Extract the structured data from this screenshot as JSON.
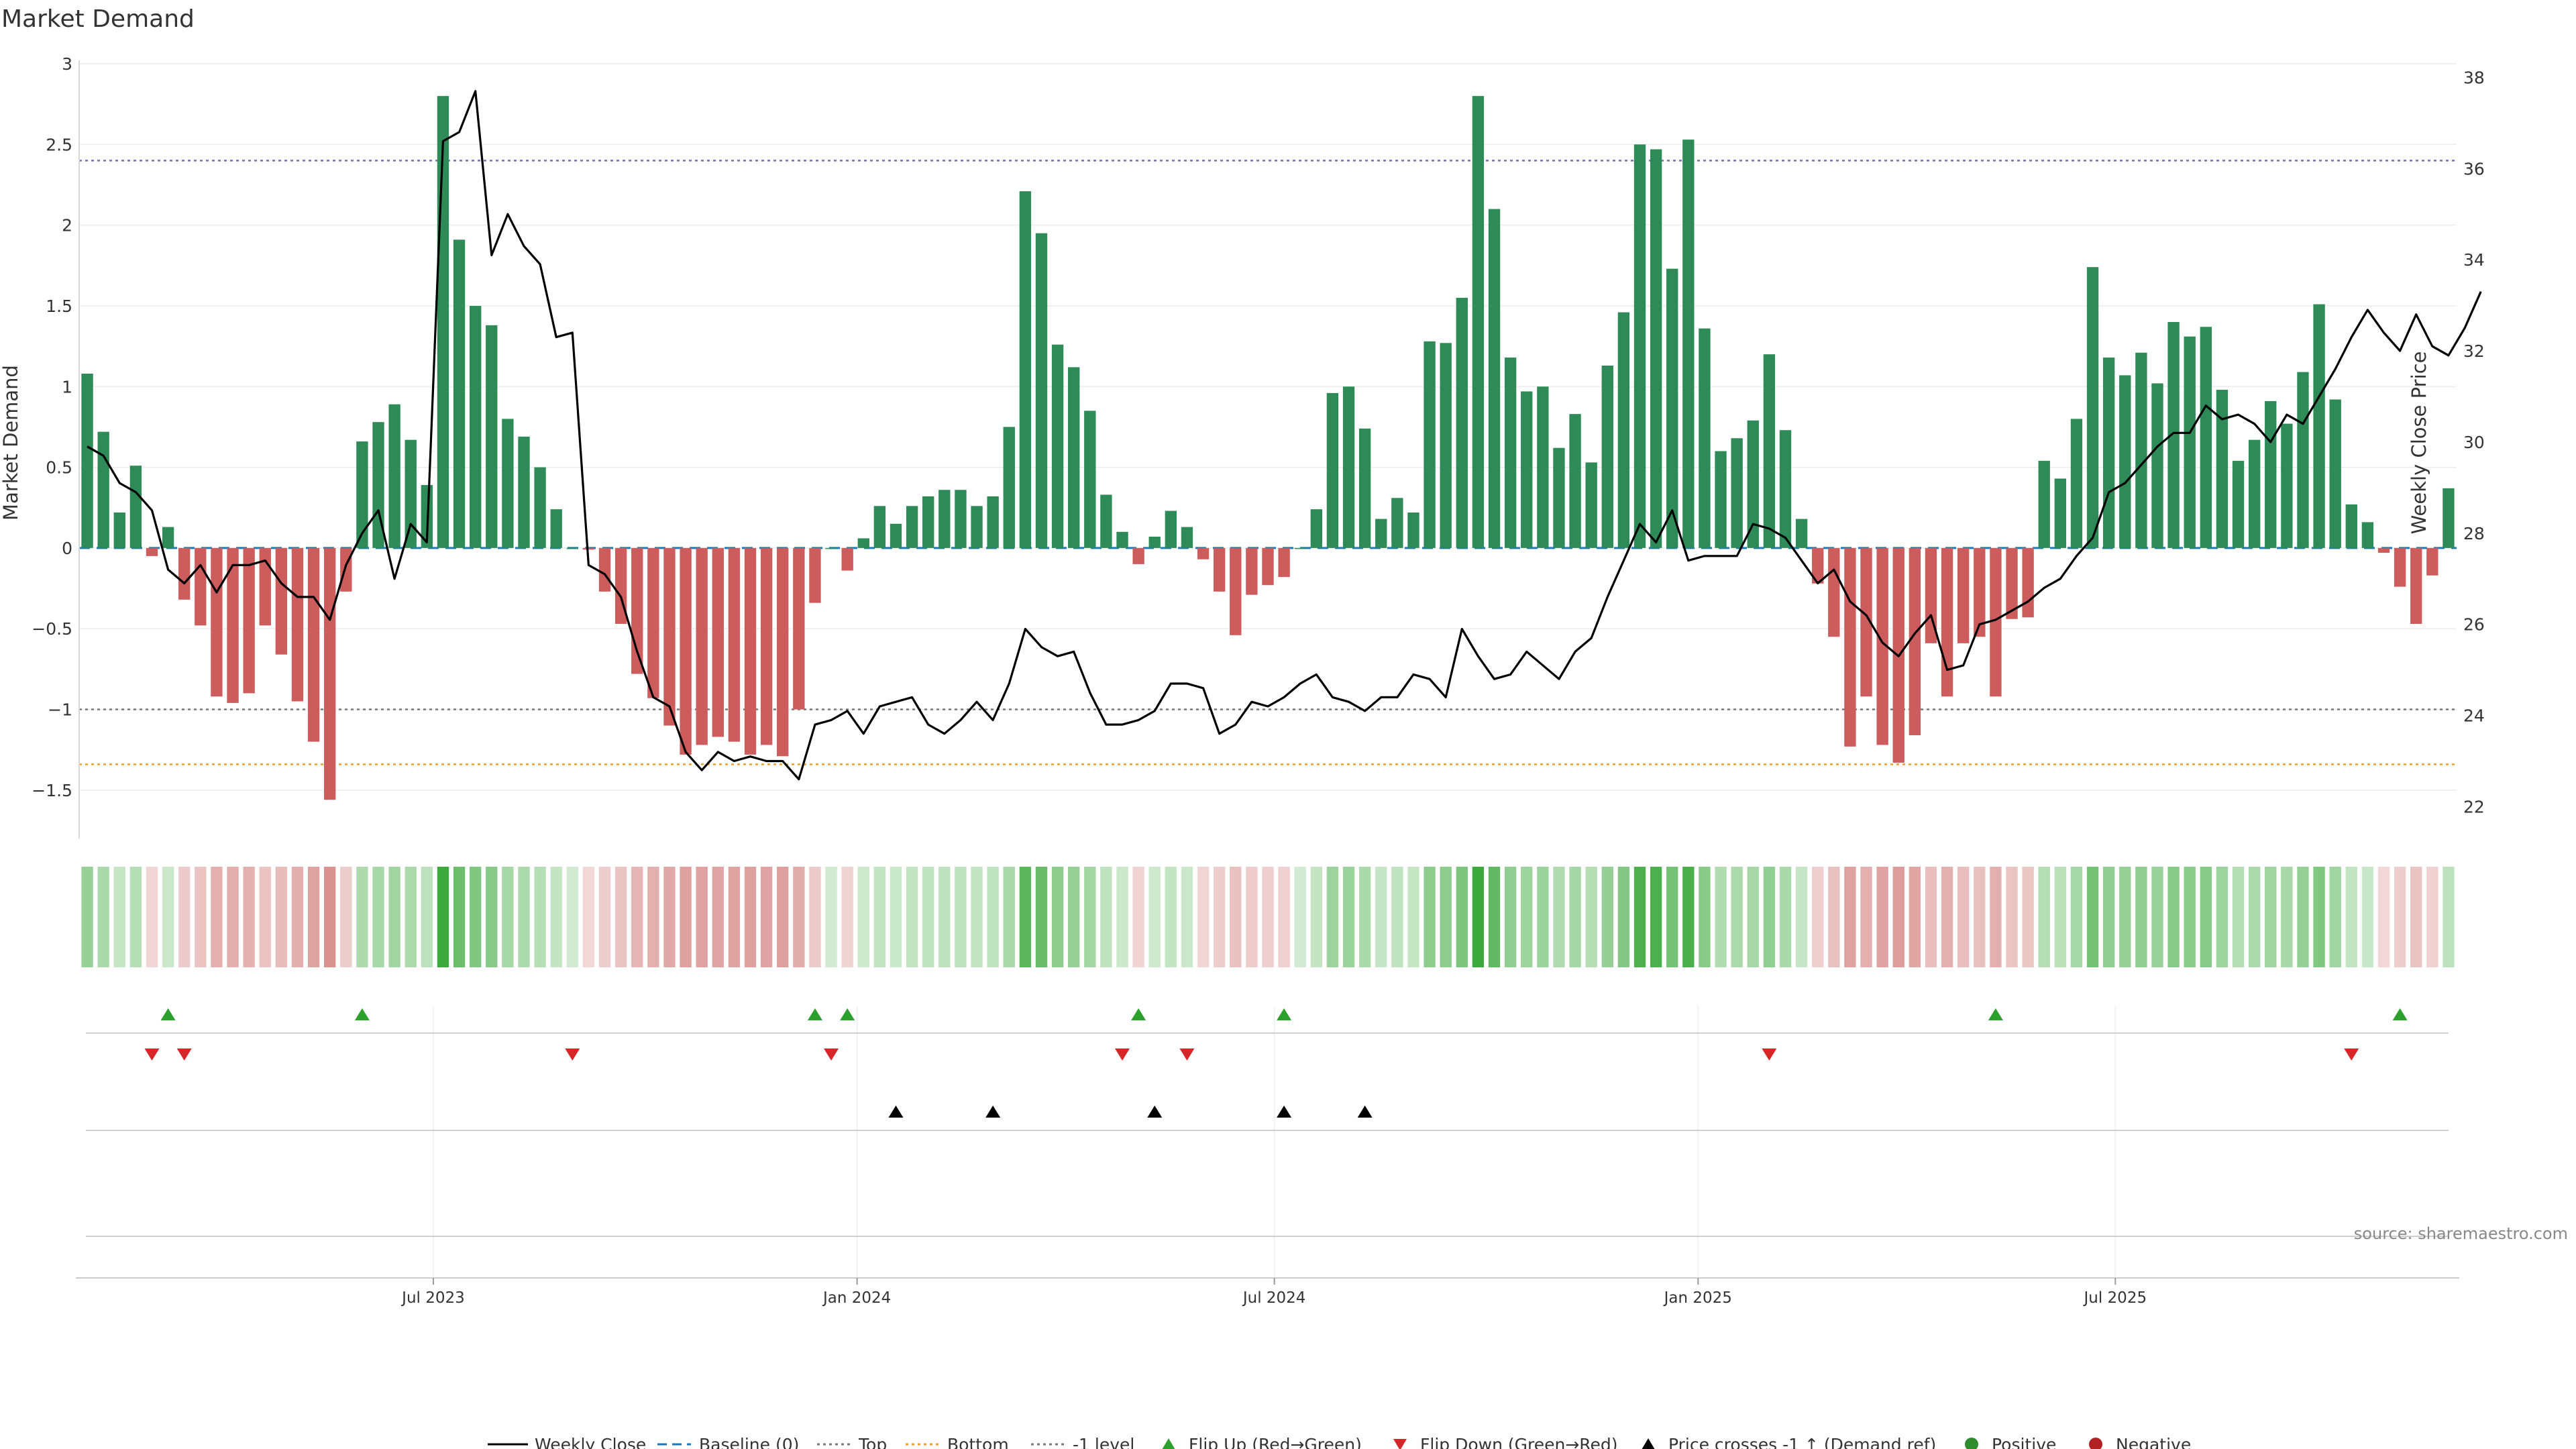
{
  "chart_data": {
    "type": "bar",
    "title": "Market Demand",
    "ylabel": "Market Demand",
    "y2label": "Weekly Close Price",
    "ylim": [
      -1.8,
      3.0
    ],
    "y2lim": [
      21.3,
      38.3
    ],
    "yticks": [
      3,
      2.5,
      2,
      1.5,
      1,
      0.5,
      0,
      -0.5,
      -1,
      -1.5
    ],
    "ytick_labels": [
      "3",
      "2.5",
      "2",
      "1.5",
      "1",
      "0.5",
      "0",
      "−0.5",
      "−1",
      "−1.5"
    ],
    "y2ticks": [
      38,
      36,
      34,
      32,
      30,
      28,
      26,
      24,
      22
    ],
    "y2tick_labels": [
      "38",
      "36",
      "34",
      "32",
      "30",
      "28",
      "26",
      "24",
      "22"
    ],
    "reference_lines": {
      "top": 2.4,
      "bottom": -1.34,
      "minus_one": -1.0,
      "baseline": 0
    },
    "x_start": "2023-02-06",
    "interval_days": 7,
    "date_ticks": [
      {
        "label": "Jul 2023",
        "week": 21.4
      },
      {
        "label": "Jan 2024",
        "week": 47.6
      },
      {
        "label": "Jul 2024",
        "week": 73.4
      },
      {
        "label": "Jan 2025",
        "week": 99.6
      },
      {
        "label": "Jul 2025",
        "week": 125.4
      }
    ],
    "series": [
      {
        "name": "Market Demand",
        "values": [
          1.08,
          0.72,
          0.22,
          0.51,
          -0.05,
          0.13,
          -0.32,
          -0.48,
          -0.92,
          -0.96,
          -0.9,
          -0.48,
          -0.66,
          -0.95,
          -1.2,
          -1.56,
          -0.27,
          0.66,
          0.78,
          0.89,
          0.67,
          0.39,
          2.8,
          1.91,
          1.5,
          1.38,
          0.8,
          0.69,
          0.5,
          0.24,
          0.0,
          -0.01,
          -0.27,
          -0.47,
          -0.78,
          -0.93,
          -1.1,
          -1.28,
          -1.22,
          -1.17,
          -1.2,
          -1.28,
          -1.22,
          -1.29,
          -1.0,
          -0.34,
          0.0,
          -0.14,
          0.06,
          0.26,
          0.15,
          0.26,
          0.32,
          0.36,
          0.36,
          0.26,
          0.32,
          0.75,
          2.21,
          1.95,
          1.26,
          1.12,
          0.85,
          0.33,
          0.1,
          -0.1,
          0.07,
          0.23,
          0.13,
          -0.07,
          -0.27,
          -0.54,
          -0.29,
          -0.23,
          -0.18,
          0.0,
          0.24,
          0.96,
          1.0,
          0.74,
          0.18,
          0.31,
          0.22,
          1.28,
          1.27,
          1.55,
          2.8,
          2.1,
          1.18,
          0.97,
          1.0,
          0.62,
          0.83,
          0.53,
          1.13,
          1.46,
          2.5,
          2.47,
          1.73,
          2.53,
          1.36,
          0.6,
          0.68,
          0.79,
          1.2,
          0.73,
          0.18,
          -0.22,
          -0.55,
          -1.23,
          -0.92,
          -1.22,
          -1.33,
          -1.16,
          -0.59,
          -0.92,
          -0.59,
          -0.55,
          -0.92,
          -0.44,
          -0.43,
          0.54,
          0.43,
          0.8,
          1.74,
          1.18,
          1.07,
          1.21,
          1.02,
          1.4,
          1.31,
          1.37,
          0.98,
          0.54,
          0.67,
          0.91,
          0.77,
          1.09,
          1.51,
          0.92,
          0.27,
          0.16,
          -0.03,
          -0.24,
          -0.47,
          -0.17,
          0.37
        ]
      },
      {
        "name": "Weekly Close",
        "axis": "right",
        "values": [
          29.9,
          29.7,
          29.1,
          28.9,
          28.5,
          27.2,
          26.9,
          27.3,
          26.7,
          27.3,
          27.3,
          27.4,
          26.9,
          26.6,
          26.6,
          26.1,
          27.3,
          28.0,
          28.5,
          27.0,
          28.2,
          27.8,
          36.6,
          36.8,
          37.7,
          34.1,
          35.0,
          34.3,
          33.9,
          32.3,
          32.4,
          27.3,
          27.1,
          26.6,
          25.4,
          24.4,
          24.2,
          23.2,
          22.8,
          23.2,
          23.0,
          23.1,
          23.0,
          23.0,
          22.6,
          23.8,
          23.9,
          24.1,
          23.6,
          24.2,
          24.3,
          24.4,
          23.8,
          23.6,
          23.9,
          24.3,
          23.9,
          24.7,
          25.9,
          25.5,
          25.3,
          25.4,
          24.5,
          23.8,
          23.8,
          23.9,
          24.1,
          24.7,
          24.7,
          24.6,
          23.6,
          23.8,
          24.3,
          24.2,
          24.4,
          24.7,
          24.9,
          24.4,
          24.3,
          24.1,
          24.4,
          24.4,
          24.9,
          24.8,
          24.4,
          25.9,
          25.3,
          24.8,
          24.9,
          25.4,
          25.1,
          24.8,
          25.4,
          25.7,
          26.6,
          27.4,
          28.2,
          27.8,
          28.5,
          27.4,
          27.5,
          27.5,
          27.5,
          28.2,
          28.1,
          27.9,
          27.4,
          26.9,
          27.2,
          26.5,
          26.2,
          25.6,
          25.3,
          25.8,
          26.2,
          25.0,
          25.1,
          26.0,
          26.1,
          26.3,
          26.5,
          26.8,
          27.0,
          27.5,
          27.9,
          28.9,
          29.1,
          29.5,
          29.9,
          30.2,
          30.2,
          30.8,
          30.5,
          30.6,
          30.4,
          30.0,
          30.6,
          30.4,
          31.0,
          31.6,
          32.3,
          32.9,
          32.4,
          32.0,
          32.8,
          32.1,
          31.9,
          32.5,
          33.3
        ]
      }
    ],
    "flip_up_weeks": [
      5,
      17,
      45,
      47,
      65,
      74,
      118,
      143
    ],
    "flip_down_weeks": [
      4,
      6,
      30,
      46,
      64,
      68,
      104,
      140
    ],
    "price_cross_weeks": [
      50,
      56,
      66,
      74,
      79
    ],
    "colors": {
      "positive": "#2e8b57",
      "negative": "#cd5c5c",
      "price_line": "#000000",
      "baseline": "#1f77b4",
      "top": "#7570b3",
      "bottom": "#e6a032",
      "minus_one": "#777777",
      "flip_up": "#2ca02c",
      "flip_down": "#d62728",
      "cross": "#000000",
      "positive_dot": "#2e8b2e",
      "negative_dot": "#b22222"
    },
    "legend": [
      "Weekly Close",
      "Baseline (0)",
      "Top",
      "Bottom",
      "-1 level",
      "Flip Up (Red→Green)",
      "Flip Down (Green→Red)",
      "Price crosses -1 ↑ (Demand ref)",
      "Positive",
      "Negative"
    ],
    "source": "source: sharemaestro.com"
  }
}
